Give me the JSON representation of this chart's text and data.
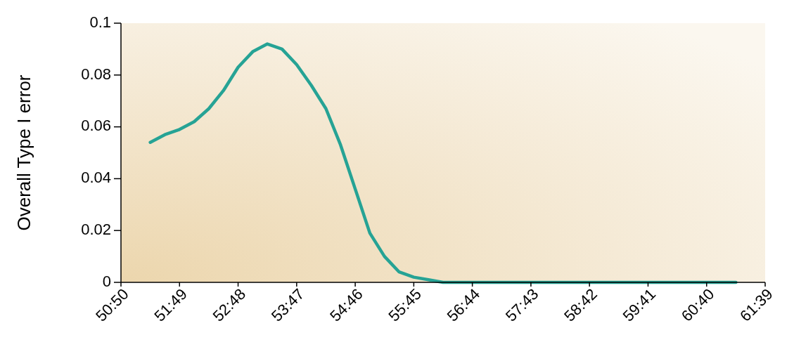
{
  "chart_data": {
    "type": "line",
    "ylabel": "Overall Type I error",
    "categories": [
      "50:50",
      null,
      null,
      null,
      "51:49",
      null,
      null,
      null,
      "52:48",
      null,
      null,
      null,
      "53:47",
      null,
      null,
      null,
      "54:46",
      null,
      null,
      null,
      "55:45",
      null,
      null,
      null,
      "56:44",
      null,
      null,
      null,
      "57:43",
      null,
      null,
      null,
      "58:42",
      null,
      null,
      null,
      "59:41",
      null,
      null,
      null,
      "60:40",
      null,
      null,
      null,
      "61:39"
    ],
    "series": [
      {
        "color": "#26a395",
        "values": [
          null,
          null,
          0.054,
          0.057,
          0.059,
          0.062,
          0.067,
          0.074,
          0.083,
          0.089,
          0.092,
          0.09,
          0.084,
          0.076,
          0.067,
          0.053,
          0.036,
          0.019,
          0.01,
          0.004,
          0.002,
          0.001,
          0,
          0,
          0,
          0,
          0,
          0,
          0,
          0,
          0,
          0,
          0,
          0,
          0,
          0,
          0,
          0,
          0,
          0,
          0,
          0,
          0,
          null,
          null
        ]
      }
    ],
    "ylim": [
      0,
      0.1
    ],
    "yticks": [
      0,
      0.02,
      0.04,
      0.06,
      0.08,
      0.1
    ],
    "grid": false,
    "marker": "none",
    "line_style": "solid"
  }
}
